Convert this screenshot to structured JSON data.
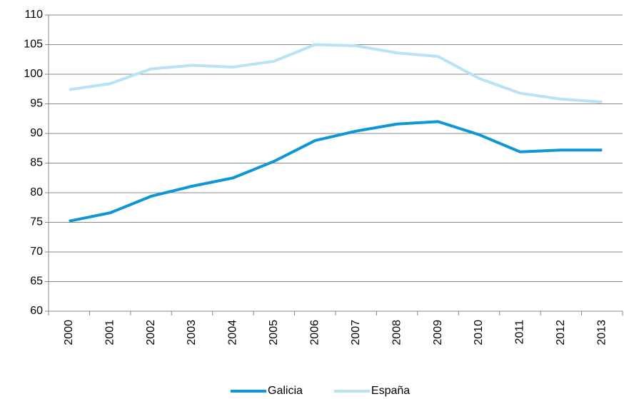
{
  "chart_data": {
    "type": "line",
    "categories": [
      "2000",
      "2001",
      "2002",
      "2003",
      "2004",
      "2005",
      "2006",
      "2007",
      "2008",
      "2009",
      "2010",
      "2011",
      "2012",
      "2013"
    ],
    "series": [
      {
        "name": "Galicia",
        "color": "#0f97d3",
        "values": [
          75.2,
          76.6,
          79.4,
          81.1,
          82.5,
          85.3,
          88.8,
          90.4,
          91.6,
          92.0,
          89.8,
          86.9,
          87.2,
          87.2
        ]
      },
      {
        "name": "España",
        "color": "#b7e3f3",
        "values": [
          97.4,
          98.4,
          100.9,
          101.5,
          101.2,
          102.2,
          105.0,
          104.8,
          103.6,
          103.0,
          99.3,
          96.8,
          95.8,
          95.3
        ]
      }
    ],
    "ylim": [
      60,
      110
    ],
    "yticks": [
      60,
      65,
      70,
      75,
      80,
      85,
      90,
      95,
      100,
      105,
      110
    ],
    "grid": true,
    "legend": "bottom"
  }
}
